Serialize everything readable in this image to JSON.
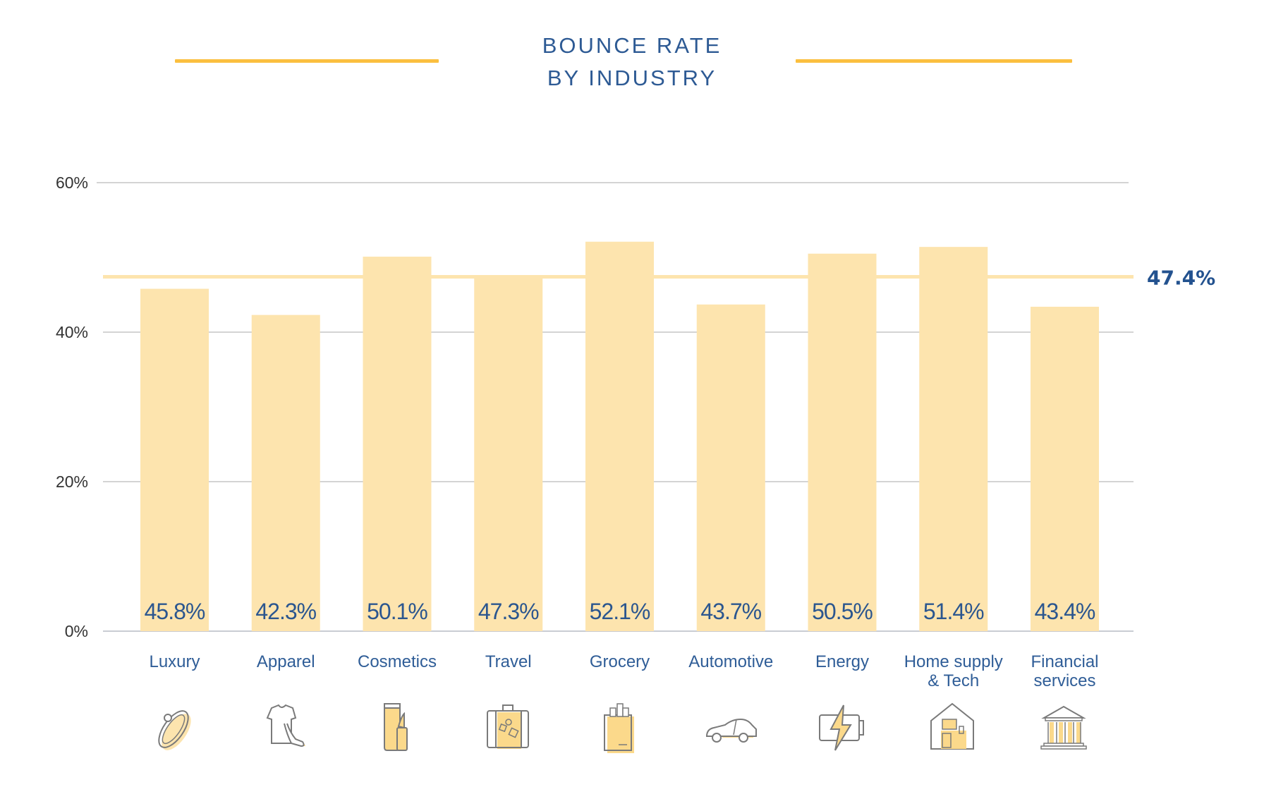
{
  "header": {
    "title_line1": "BOUNCE RATE",
    "title_line2": "BY INDUSTRY"
  },
  "colors": {
    "bar": "#FDE4AE",
    "average_line": "#FDE4AE",
    "accent_lines": "#FBBF3F",
    "text_blue": "#2B568F",
    "gridline": "#D4D4D4",
    "icon_stroke": "#7A7A7A",
    "icon_fill": "#FBD98B"
  },
  "chart_data": {
    "type": "bar",
    "title": "BOUNCE RATE BY INDUSTRY",
    "xlabel": "",
    "ylabel": "",
    "ylim": [
      0,
      60
    ],
    "yticks": [
      0,
      20,
      40,
      60
    ],
    "ytick_labels": [
      "0%",
      "20%",
      "40%",
      "60%"
    ],
    "grid": true,
    "categories": [
      "Luxury",
      "Apparel",
      "Cosmetics",
      "Travel",
      "Grocery",
      "Automotive",
      "Energy",
      "Home supply & Tech",
      "Financial services"
    ],
    "category_label_lines": [
      [
        "Luxury"
      ],
      [
        "Apparel"
      ],
      [
        "Cosmetics"
      ],
      [
        "Travel"
      ],
      [
        "Grocery"
      ],
      [
        "Automotive"
      ],
      [
        "Energy"
      ],
      [
        "Home supply",
        "& Tech"
      ],
      [
        "Financial",
        "services"
      ]
    ],
    "values": [
      45.8,
      42.3,
      50.1,
      47.3,
      52.1,
      43.7,
      50.5,
      51.4,
      43.4
    ],
    "value_labels": [
      "45.8%",
      "42.3%",
      "50.1%",
      "47.3%",
      "52.1%",
      "43.7%",
      "50.5%",
      "51.4%",
      "43.4%"
    ],
    "icons": [
      "ring-icon",
      "apparel-icon",
      "cosmetics-icon",
      "suitcase-icon",
      "grocery-bag-icon",
      "car-icon",
      "battery-icon",
      "home-tech-icon",
      "bank-icon"
    ],
    "average": {
      "value": 47.4,
      "label": "47.4%"
    }
  }
}
